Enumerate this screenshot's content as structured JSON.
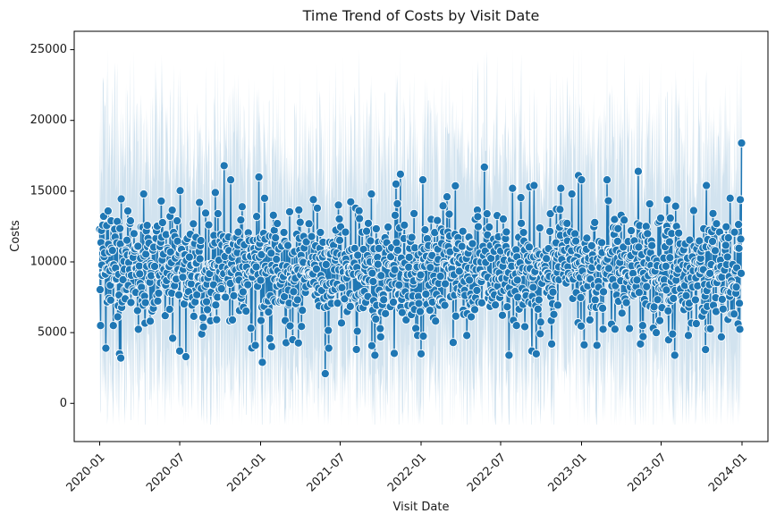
{
  "chart_data": {
    "type": "line",
    "title": "Time Trend of Costs by Visit Date",
    "xlabel": "Visit Date",
    "ylabel": "Costs",
    "x_ticks": [
      "2020-01",
      "2020-07",
      "2021-01",
      "2021-07",
      "2022-01",
      "2022-07",
      "2023-01",
      "2023-07",
      "2024-01"
    ],
    "y_ticks": [
      "0",
      "5000",
      "10000",
      "15000",
      "20000",
      "25000"
    ],
    "xlim": [
      "2019-11-04",
      "2024-02-29"
    ],
    "ylim": [
      -2700,
      26300
    ],
    "grid": false,
    "legend": "none",
    "series": [
      {
        "line_color": "#1f77b4",
        "band_color": "#a6c8e0",
        "marker": "circle",
        "marker_edge_color": "#ffffff",
        "date_range": [
          "2020-01-01",
          "2023-12-31"
        ],
        "mean": 9500,
        "spread": 1900,
        "min": 2100,
        "max": 18400,
        "ci_low": -1500,
        "ci_high": 25000,
        "points": [
          [
            "2020-01-01",
            12300
          ],
          [
            "2020-01-03",
            5500
          ],
          [
            "2020-01-08",
            12600
          ],
          [
            "2020-01-15",
            3900
          ],
          [
            "2020-01-20",
            13600
          ],
          [
            "2020-02-01",
            5500
          ],
          [
            "2020-02-15",
            3500
          ],
          [
            "2020-02-18",
            3200
          ],
          [
            "2020-03-05",
            13600
          ],
          [
            "2020-04-10",
            14800
          ],
          [
            "2020-05-20",
            14300
          ],
          [
            "2020-06-15",
            4600
          ],
          [
            "2020-07-01",
            3700
          ],
          [
            "2020-08-15",
            14200
          ],
          [
            "2020-08-20",
            4900
          ],
          [
            "2020-09-20",
            14900
          ],
          [
            "2020-10-10",
            16800
          ],
          [
            "2020-10-25",
            15800
          ],
          [
            "2020-11-20",
            13900
          ],
          [
            "2020-12-20",
            4100
          ],
          [
            "2020-12-28",
            16000
          ],
          [
            "2021-01-05",
            2900
          ],
          [
            "2021-01-10",
            14500
          ],
          [
            "2021-03-15",
            4500
          ],
          [
            "2021-04-01",
            12800
          ],
          [
            "2021-05-10",
            13800
          ],
          [
            "2021-05-28",
            2100
          ],
          [
            "2021-06-05",
            3900
          ],
          [
            "2021-08-05",
            13800
          ],
          [
            "2021-09-10",
            14800
          ],
          [
            "2021-09-18",
            3400
          ],
          [
            "2021-10-01",
            4700
          ],
          [
            "2021-11-05",
            15500
          ],
          [
            "2021-11-15",
            16200
          ],
          [
            "2021-12-20",
            5300
          ],
          [
            "2022-01-01",
            3500
          ],
          [
            "2022-01-05",
            15800
          ],
          [
            "2022-03-01",
            14600
          ],
          [
            "2022-03-15",
            4300
          ],
          [
            "2022-04-15",
            4800
          ],
          [
            "2022-05-10",
            13200
          ],
          [
            "2022-05-25",
            16700
          ],
          [
            "2022-07-20",
            3400
          ],
          [
            "2022-07-28",
            15200
          ],
          [
            "2022-09-05",
            15300
          ],
          [
            "2022-09-10",
            3700
          ],
          [
            "2022-09-15",
            15400
          ],
          [
            "2022-09-20",
            3500
          ],
          [
            "2022-10-25",
            4200
          ],
          [
            "2022-11-15",
            15200
          ],
          [
            "2022-12-10",
            14800
          ],
          [
            "2022-12-25",
            16100
          ],
          [
            "2023-01-01",
            15800
          ],
          [
            "2023-01-20",
            5900
          ],
          [
            "2023-02-05",
            4100
          ],
          [
            "2023-02-28",
            15800
          ],
          [
            "2023-04-01",
            13300
          ],
          [
            "2023-05-10",
            16400
          ],
          [
            "2023-05-15",
            4200
          ],
          [
            "2023-06-05",
            14100
          ],
          [
            "2023-06-20",
            5000
          ],
          [
            "2023-07-15",
            14400
          ],
          [
            "2023-08-01",
            3400
          ],
          [
            "2023-09-01",
            4800
          ],
          [
            "2023-10-10",
            3800
          ],
          [
            "2023-11-15",
            4700
          ],
          [
            "2023-12-05",
            14500
          ],
          [
            "2023-12-28",
            14400
          ],
          [
            "2023-12-31",
            18400
          ]
        ]
      }
    ]
  }
}
